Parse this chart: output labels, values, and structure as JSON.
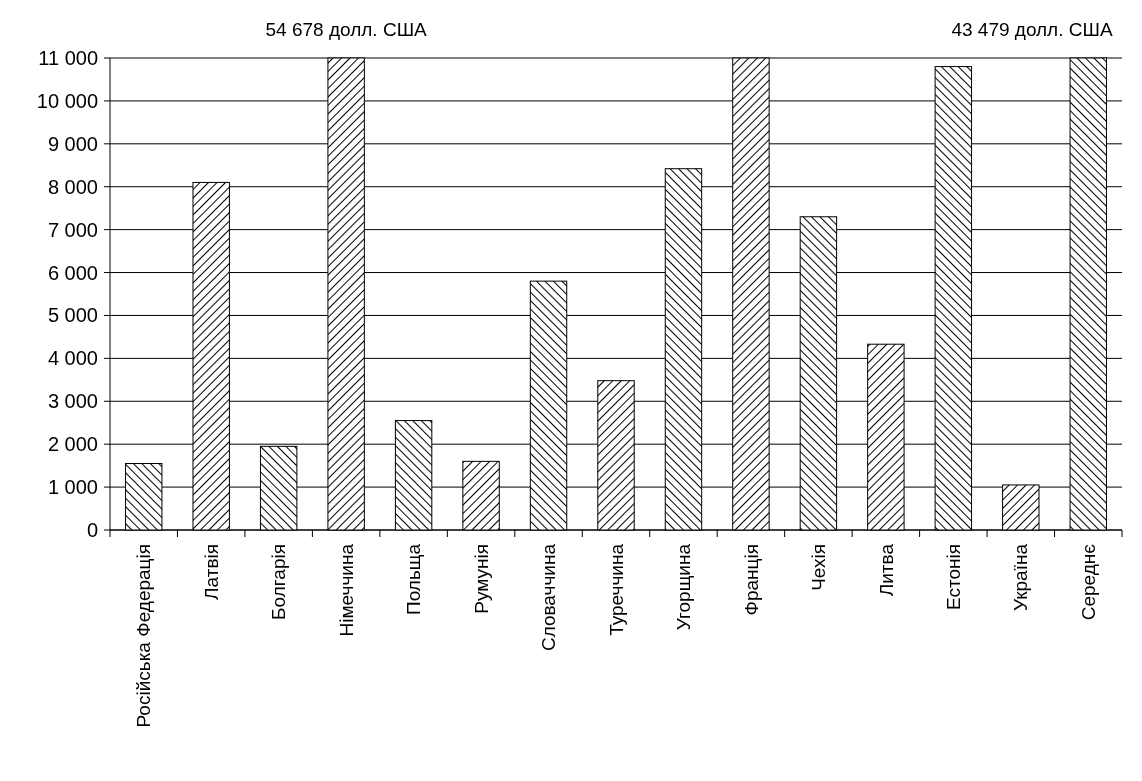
{
  "chart_data": {
    "type": "bar",
    "categories": [
      "Російська Федерація",
      "Латвія",
      "Болгарія",
      "Німеччина",
      "Польща",
      "Румунія",
      "Словаччина",
      "Туреччина",
      "Угорщина",
      "Франція",
      "Чехія",
      "Литва",
      "Естонія",
      "Україна",
      "Середнє"
    ],
    "values": [
      1550,
      8100,
      1950,
      11000,
      2550,
      1600,
      5800,
      3480,
      8420,
      11000,
      7300,
      4330,
      10800,
      1050,
      11000
    ],
    "colors": [
      "#000000",
      "#000000",
      "#000000",
      "#000000",
      "#000000",
      "#000000",
      "#000000",
      "#000000",
      "#000000",
      "#000000",
      "#000000",
      "#000000",
      "#000000",
      "#000000",
      "#000000"
    ],
    "ylim": [
      0,
      11000
    ],
    "yticks": [
      {
        "value": 0,
        "label": "0"
      },
      {
        "value": 1000,
        "label": "1 000"
      },
      {
        "value": 2000,
        "label": "2 000"
      },
      {
        "value": 3000,
        "label": "3 000"
      },
      {
        "value": 4000,
        "label": "4 000"
      },
      {
        "value": 5000,
        "label": "5 000"
      },
      {
        "value": 6000,
        "label": "6 000"
      },
      {
        "value": 7000,
        "label": "7 000"
      },
      {
        "value": 8000,
        "label": "8 000"
      },
      {
        "value": 9000,
        "label": "9 000"
      },
      {
        "value": 10000,
        "label": "10 000"
      },
      {
        "value": 11000,
        "label": "11 000"
      }
    ],
    "grid": "y",
    "annotations": [
      {
        "text": "54 678 долл. США",
        "x": "Німеччина",
        "y": 11000
      },
      {
        "text": "43 479 долл. США",
        "x": "Середнє",
        "y": 11000
      }
    ]
  }
}
